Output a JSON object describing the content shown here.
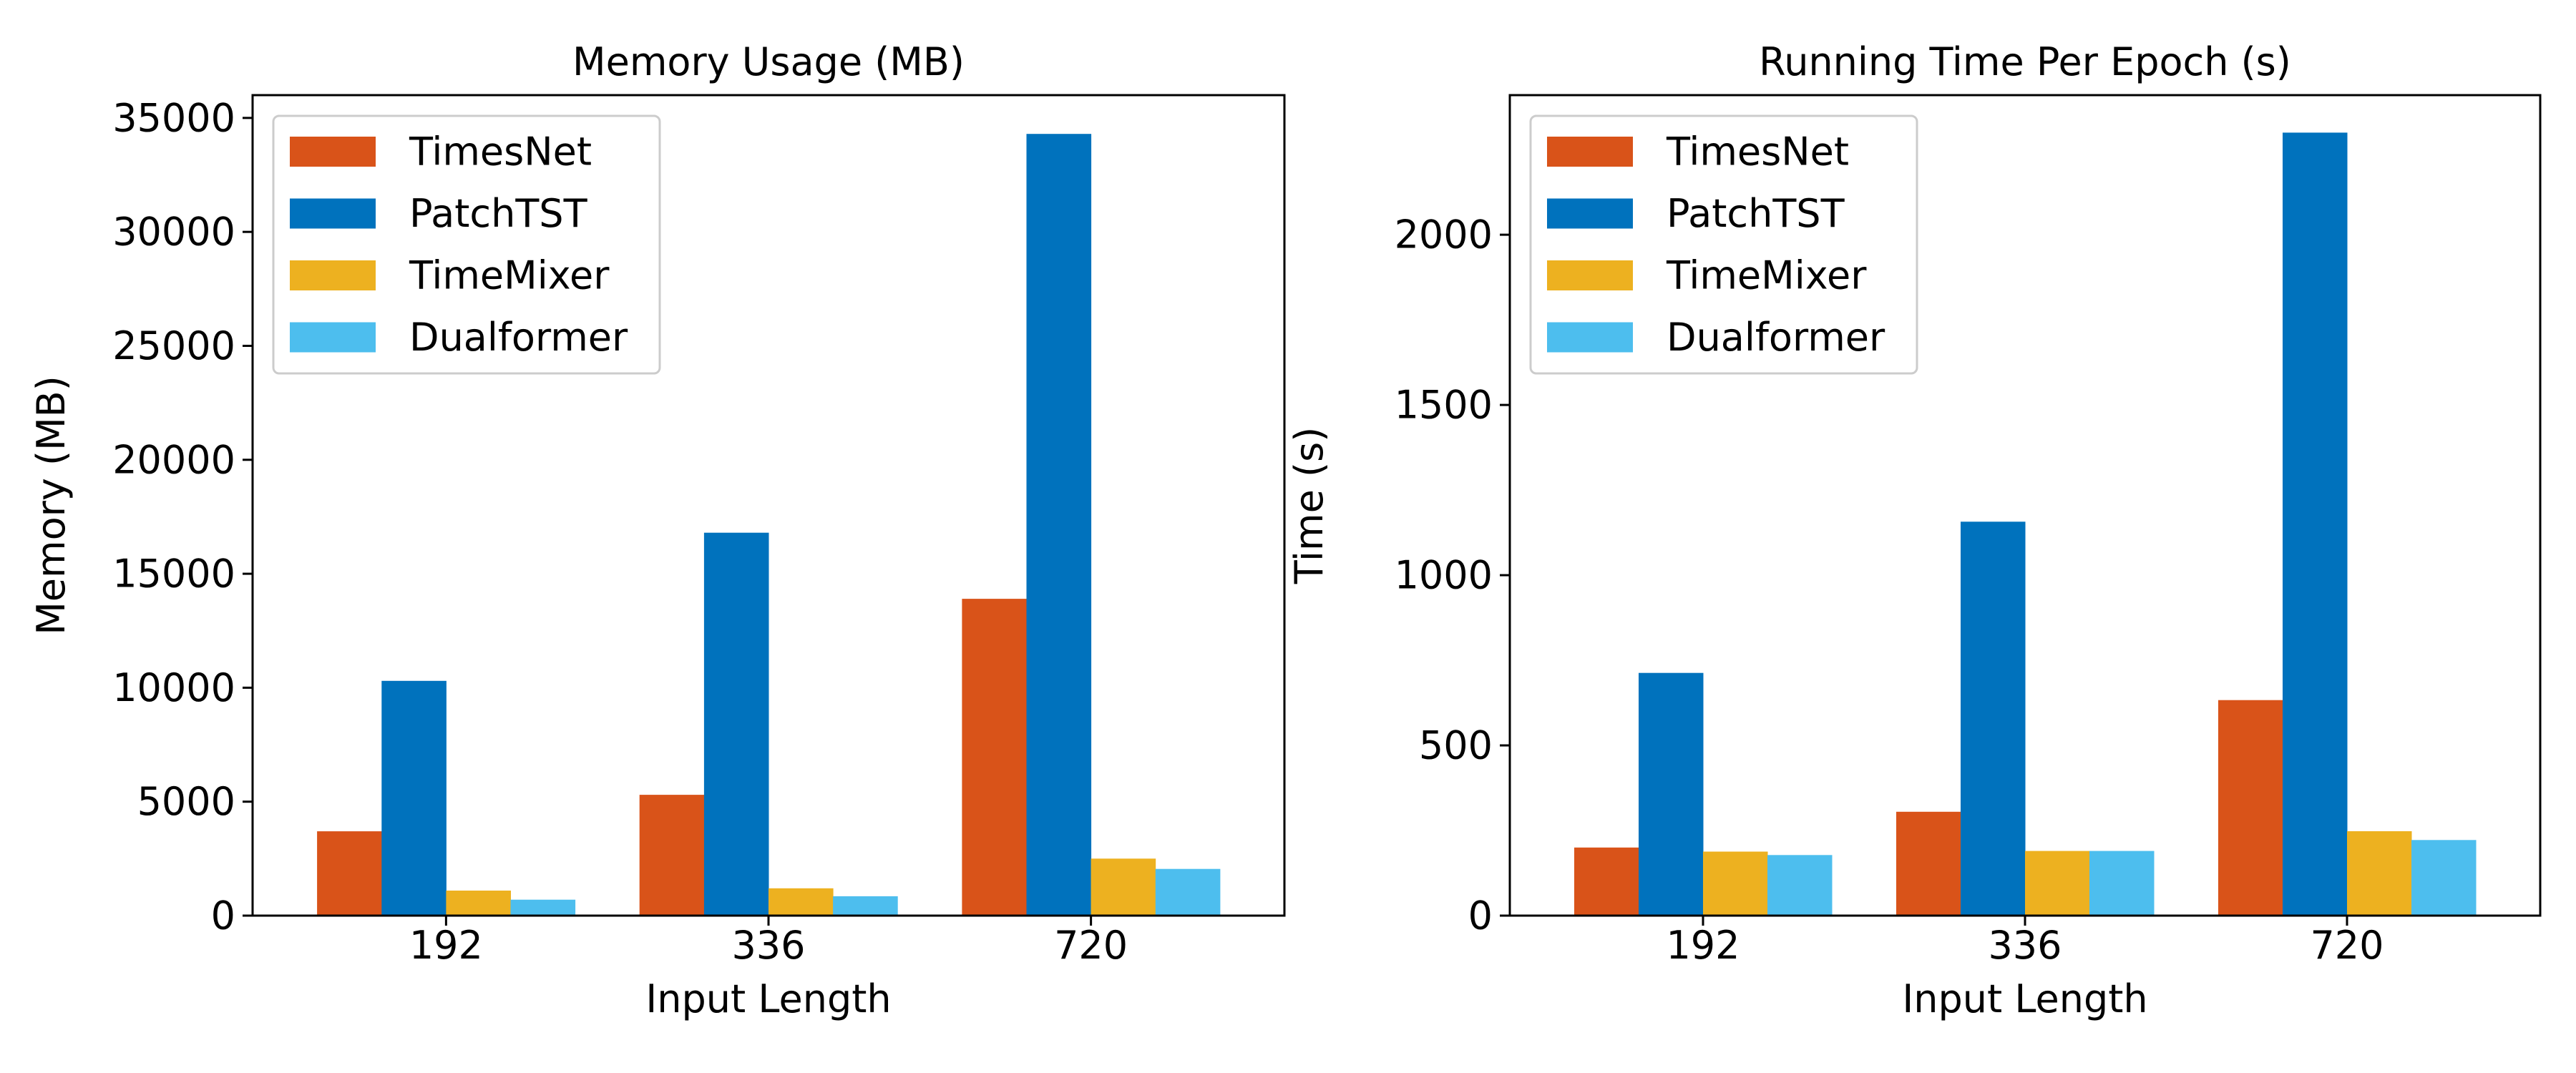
{
  "chart_data": [
    {
      "type": "bar",
      "title": "Memory Usage (MB)",
      "xlabel": "Input Length",
      "ylabel": "Memory (MB)",
      "categories": [
        "192",
        "336",
        "720"
      ],
      "ylim": [
        0,
        36000
      ],
      "yticks": [
        0,
        5000,
        10000,
        15000,
        20000,
        25000,
        30000,
        35000
      ],
      "ytick_labels": [
        "0",
        "5000",
        "10000",
        "15000",
        "20000",
        "25000",
        "30000",
        "35000"
      ],
      "grid": false,
      "legend_position": "top-left",
      "series": [
        {
          "name": "TimesNet",
          "color": "#D95319",
          "values": [
            3700,
            5300,
            13900
          ]
        },
        {
          "name": "PatchTST",
          "color": "#0072BD",
          "values": [
            10300,
            16800,
            34300
          ]
        },
        {
          "name": "TimeMixer",
          "color": "#EDB120",
          "values": [
            1100,
            1200,
            2500
          ]
        },
        {
          "name": "Dualformer",
          "color": "#4DBEEE",
          "values": [
            700,
            850,
            2050
          ]
        }
      ]
    },
    {
      "type": "bar",
      "title": "Running Time Per Epoch (s)",
      "xlabel": "Input Length",
      "ylabel": "Time (s)",
      "categories": [
        "192",
        "336",
        "720"
      ],
      "ylim": [
        0,
        2410
      ],
      "yticks": [
        0,
        500,
        1000,
        1500,
        2000
      ],
      "ytick_labels": [
        "0",
        "500",
        "1000",
        "1500",
        "2000"
      ],
      "grid": false,
      "legend_position": "top-left",
      "series": [
        {
          "name": "TimesNet",
          "color": "#D95319",
          "values": [
            200,
            305,
            633
          ]
        },
        {
          "name": "PatchTST",
          "color": "#0072BD",
          "values": [
            713,
            1157,
            2300
          ]
        },
        {
          "name": "TimeMixer",
          "color": "#EDB120",
          "values": [
            188,
            190,
            248
          ]
        },
        {
          "name": "Dualformer",
          "color": "#4DBEEE",
          "values": [
            178,
            190,
            222
          ]
        }
      ]
    }
  ]
}
